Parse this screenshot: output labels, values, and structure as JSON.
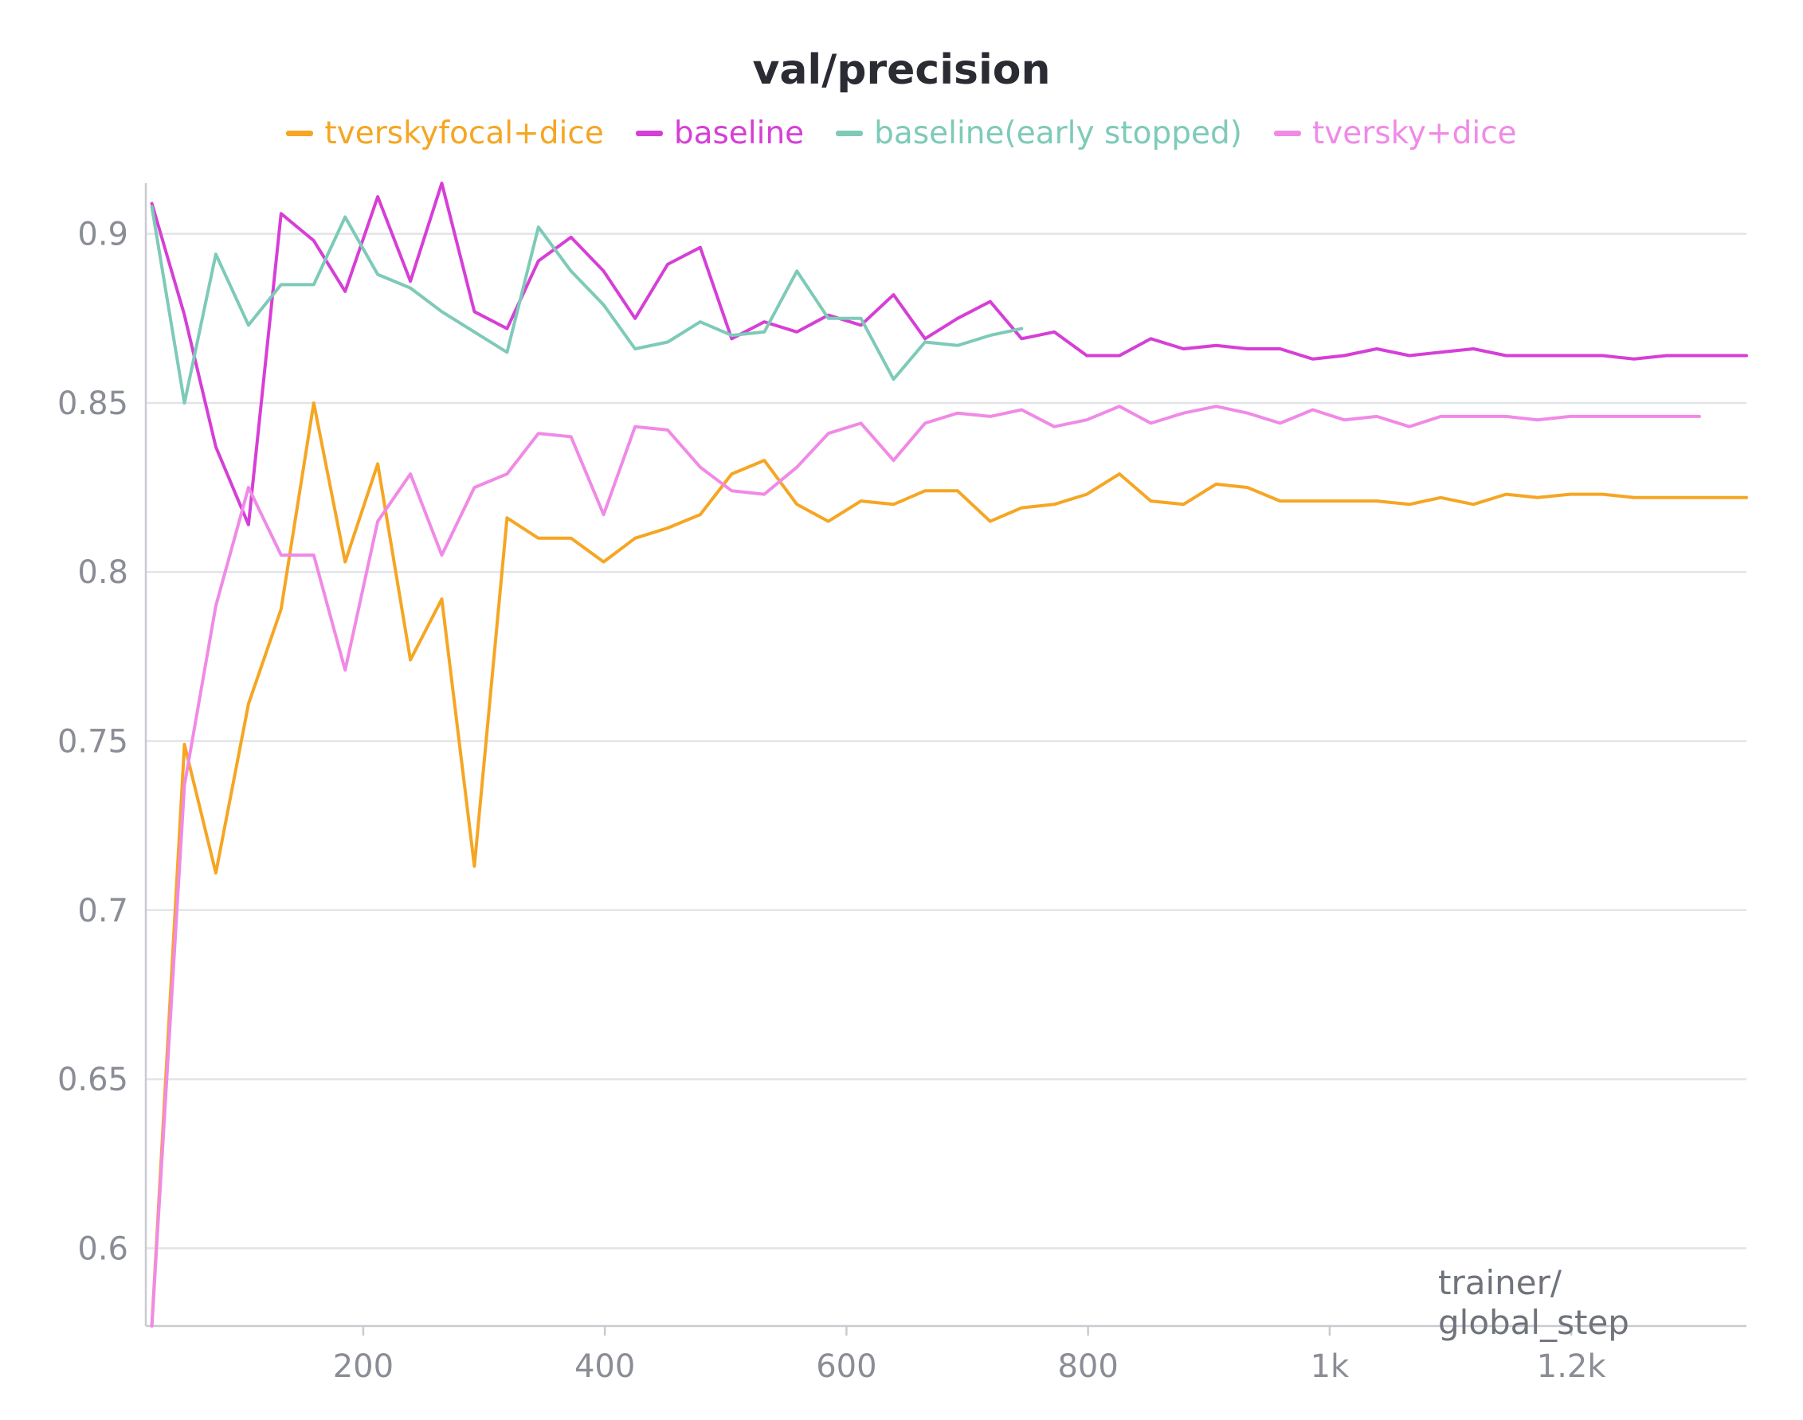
{
  "chart_data": {
    "type": "line",
    "title": "val/precision",
    "xlabel_lines": [
      "trainer/",
      "global_step"
    ],
    "ylabel": "",
    "xlim": [
      20,
      1345
    ],
    "ylim": [
      0.577,
      0.915
    ],
    "x_ticks": [
      {
        "value": 200,
        "label": "200"
      },
      {
        "value": 400,
        "label": "400"
      },
      {
        "value": 600,
        "label": "600"
      },
      {
        "value": 800,
        "label": "800"
      },
      {
        "value": 1000,
        "label": "1k"
      },
      {
        "value": 1200,
        "label": "1.2k"
      }
    ],
    "y_ticks": [
      {
        "value": 0.6,
        "label": "0.6"
      },
      {
        "value": 0.65,
        "label": "0.65"
      },
      {
        "value": 0.7,
        "label": "0.7"
      },
      {
        "value": 0.75,
        "label": "0.75"
      },
      {
        "value": 0.8,
        "label": "0.8"
      },
      {
        "value": 0.85,
        "label": "0.85"
      },
      {
        "value": 0.9,
        "label": "0.9"
      }
    ],
    "grid": true,
    "legend_position": "top-center",
    "series": [
      {
        "name": "tverskyfocal+dice",
        "color": "#f5a623",
        "x": [
          25,
          52,
          78,
          105,
          132,
          159,
          185,
          212,
          239,
          265,
          292,
          319,
          345,
          372,
          399,
          425,
          452,
          479,
          505,
          532,
          559,
          585,
          612,
          639,
          665,
          692,
          719,
          745,
          772,
          799,
          826,
          852,
          879,
          906,
          932,
          959,
          986,
          1012,
          1039,
          1066,
          1092,
          1119,
          1146,
          1172,
          1199,
          1226,
          1252,
          1279,
          1306,
          1345
        ],
        "values": [
          0.577,
          0.749,
          0.711,
          0.761,
          0.789,
          0.85,
          0.803,
          0.832,
          0.774,
          0.792,
          0.713,
          0.816,
          0.81,
          0.81,
          0.803,
          0.81,
          0.813,
          0.817,
          0.829,
          0.833,
          0.82,
          0.815,
          0.821,
          0.82,
          0.824,
          0.824,
          0.815,
          0.819,
          0.82,
          0.823,
          0.829,
          0.821,
          0.82,
          0.826,
          0.825,
          0.821,
          0.821,
          0.821,
          0.821,
          0.82,
          0.822,
          0.82,
          0.823,
          0.822,
          0.823,
          0.823,
          0.822,
          0.822,
          0.822,
          0.822
        ]
      },
      {
        "name": "baseline",
        "color": "#d63fd6",
        "x": [
          25,
          52,
          78,
          105,
          132,
          159,
          185,
          212,
          239,
          265,
          292,
          319,
          345,
          372,
          399,
          425,
          452,
          479,
          505,
          532,
          559,
          585,
          612,
          639,
          665,
          692,
          719,
          745,
          772,
          799,
          826,
          852,
          879,
          906,
          932,
          959,
          986,
          1012,
          1039,
          1066,
          1092,
          1119,
          1146,
          1172,
          1199,
          1226,
          1252,
          1279,
          1306,
          1345
        ],
        "values": [
          0.909,
          0.876,
          0.837,
          0.814,
          0.906,
          0.898,
          0.883,
          0.911,
          0.886,
          0.915,
          0.877,
          0.872,
          0.892,
          0.899,
          0.889,
          0.875,
          0.891,
          0.896,
          0.869,
          0.874,
          0.871,
          0.876,
          0.873,
          0.882,
          0.869,
          0.875,
          0.88,
          0.869,
          0.871,
          0.864,
          0.864,
          0.869,
          0.866,
          0.867,
          0.866,
          0.866,
          0.863,
          0.864,
          0.866,
          0.864,
          0.865,
          0.866,
          0.864,
          0.864,
          0.864,
          0.864,
          0.863,
          0.864,
          0.864,
          0.864
        ]
      },
      {
        "name": "baseline(early stopped)",
        "color": "#7ecab8",
        "x": [
          25,
          52,
          78,
          105,
          132,
          159,
          185,
          212,
          239,
          265,
          292,
          319,
          345,
          372,
          399,
          425,
          452,
          479,
          505,
          532,
          559,
          585,
          612,
          639,
          665,
          692,
          719,
          745
        ],
        "values": [
          0.908,
          0.85,
          0.894,
          0.873,
          0.885,
          0.885,
          0.905,
          0.888,
          0.884,
          0.877,
          0.871,
          0.865,
          0.902,
          0.889,
          0.879,
          0.866,
          0.868,
          0.874,
          0.87,
          0.871,
          0.889,
          0.875,
          0.875,
          0.857,
          0.868,
          0.867,
          0.87,
          0.872
        ]
      },
      {
        "name": "tversky+dice",
        "color": "#f08ae6",
        "x": [
          25,
          52,
          78,
          105,
          132,
          159,
          185,
          212,
          239,
          265,
          292,
          319,
          345,
          372,
          399,
          425,
          452,
          479,
          505,
          532,
          559,
          585,
          612,
          639,
          665,
          692,
          719,
          745,
          772,
          799,
          826,
          852,
          879,
          906,
          932,
          959,
          986,
          1012,
          1039,
          1066,
          1092,
          1119,
          1146,
          1172,
          1199,
          1226,
          1252,
          1279,
          1306
        ],
        "values": [
          0.577,
          0.737,
          0.79,
          0.825,
          0.805,
          0.805,
          0.771,
          0.815,
          0.829,
          0.805,
          0.825,
          0.829,
          0.841,
          0.84,
          0.817,
          0.843,
          0.842,
          0.831,
          0.824,
          0.823,
          0.831,
          0.841,
          0.844,
          0.833,
          0.844,
          0.847,
          0.846,
          0.848,
          0.843,
          0.845,
          0.849,
          0.844,
          0.847,
          0.849,
          0.847,
          0.844,
          0.848,
          0.845,
          0.846,
          0.843,
          0.846,
          0.846,
          0.846,
          0.845,
          0.846,
          0.846,
          0.846,
          0.846,
          0.846
        ]
      }
    ]
  }
}
